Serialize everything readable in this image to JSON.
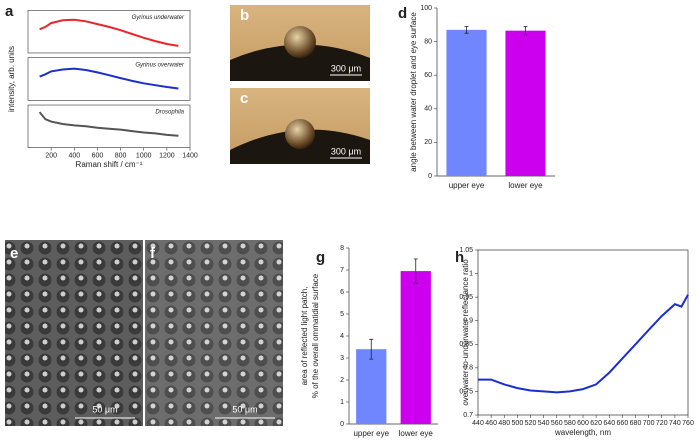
{
  "chart_data": [
    {
      "type": "line",
      "panel": "a",
      "xlabel": "Raman shift / cm⁻¹",
      "ylabel": "intensity, arb. units",
      "x": [
        100,
        150,
        200,
        300,
        400,
        500,
        600,
        700,
        800,
        900,
        1000,
        1100,
        1200,
        1300
      ],
      "series": [
        {
          "name": "Gyrinus underwater",
          "color": "#e8262b",
          "values": [
            2.55,
            2.6,
            2.68,
            2.74,
            2.75,
            2.72,
            2.66,
            2.6,
            2.53,
            2.45,
            2.37,
            2.3,
            2.24,
            2.2
          ]
        },
        {
          "name": "Gyrinus overwater",
          "color": "#1a2fcc",
          "values": [
            1.55,
            1.6,
            1.66,
            1.7,
            1.72,
            1.69,
            1.64,
            1.58,
            1.52,
            1.46,
            1.41,
            1.37,
            1.33,
            1.3
          ]
        },
        {
          "name": "Drosophila",
          "color": "#555555",
          "values": [
            0.8,
            0.65,
            0.6,
            0.55,
            0.52,
            0.5,
            0.47,
            0.45,
            0.43,
            0.4,
            0.37,
            0.35,
            0.32,
            0.3
          ]
        }
      ],
      "xlim": [
        0,
        1400
      ],
      "xticks": [
        200,
        400,
        600,
        800,
        1000,
        1200,
        1400
      ],
      "ylim": [
        0,
        3
      ]
    },
    {
      "type": "bar",
      "panel": "d",
      "ylabel": "angle between water droplet and eye surface",
      "categories": [
        "upper eye",
        "lower eye"
      ],
      "values": [
        87,
        86.5
      ],
      "errors": [
        2,
        2.5
      ],
      "colors": [
        "#6f86ff",
        "#cc00ee"
      ],
      "ylim": [
        0,
        100
      ],
      "yticks": [
        0,
        20,
        40,
        60,
        80,
        100
      ]
    },
    {
      "type": "bar",
      "panel": "g",
      "ylabel": [
        "area of reflected light patch,",
        "% of the overall ommatidial surface"
      ],
      "categories": [
        "upper eye",
        "lower eye"
      ],
      "values": [
        3.4,
        6.95
      ],
      "errors": [
        0.45,
        0.55
      ],
      "colors": [
        "#6f86ff",
        "#cc00ee"
      ],
      "ylim": [
        0,
        8
      ],
      "yticks": [
        0,
        1,
        2,
        3,
        4,
        5,
        6,
        7,
        8
      ]
    },
    {
      "type": "line",
      "panel": "h",
      "xlabel": "wavelength, nm",
      "ylabel": "overwater-to-underwater reflectance ratio",
      "x": [
        440,
        460,
        480,
        500,
        520,
        540,
        560,
        580,
        600,
        620,
        640,
        660,
        680,
        700,
        720,
        740,
        750,
        760
      ],
      "series": [
        {
          "color": "#1a2fcc",
          "values": [
            0.775,
            0.775,
            0.765,
            0.757,
            0.752,
            0.75,
            0.748,
            0.75,
            0.755,
            0.765,
            0.79,
            0.82,
            0.85,
            0.88,
            0.91,
            0.935,
            0.93,
            0.955
          ]
        }
      ],
      "xlim": [
        440,
        760
      ],
      "xticks": [
        440,
        460,
        480,
        500,
        520,
        540,
        560,
        580,
        600,
        620,
        640,
        660,
        680,
        700,
        720,
        740,
        760
      ],
      "ylim": [
        0.7,
        1.05
      ],
      "yticks": [
        0.7,
        0.75,
        0.8,
        0.85,
        0.9,
        0.95,
        1,
        1.05
      ]
    }
  ],
  "photos": [
    {
      "letter": "b",
      "scale": "300 μm"
    },
    {
      "letter": "c",
      "scale": "300 μm"
    },
    {
      "letter": "e",
      "scale": "50 μm"
    },
    {
      "letter": "f",
      "scale": "50 μm"
    }
  ]
}
